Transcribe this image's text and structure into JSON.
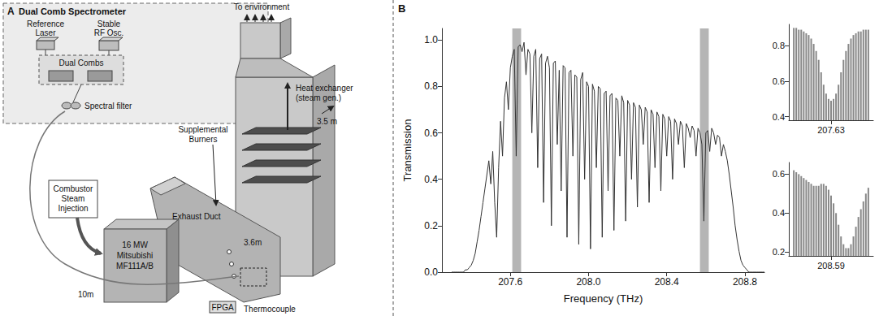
{
  "diagram": {
    "panel": "A",
    "title": "Dual Comb Spectrometer",
    "components": {
      "reference_laser": [
        "Reference",
        "Laser"
      ],
      "rf_oscillator": [
        "Stable",
        "RF Osc."
      ],
      "dual_combs": [
        "Dual Combs"
      ],
      "spectral_filter": [
        "Spectral filter"
      ],
      "exhaust": [
        "To environment"
      ],
      "heat_exchanger": [
        "Heat exchanger",
        "(steam gen.)"
      ],
      "stack_width": [
        "3.5 m"
      ],
      "burners": [
        "Supplemental",
        "Burners"
      ],
      "steam_injection": [
        "Combustor",
        "Steam",
        "Injection"
      ],
      "duct": [
        "Exhaust Duct"
      ],
      "duct_width": [
        "3.6m"
      ],
      "turbine": [
        "16 MW",
        "Mitsubishi",
        "MF111A/B"
      ],
      "fiber_length": [
        "10m"
      ],
      "fpga": [
        "FPGA"
      ],
      "thermocouple": [
        "Thermocouple"
      ]
    }
  },
  "chart_data": [
    {
      "type": "line",
      "panel": "B",
      "x_label": "Frequency (THz)",
      "y_label": "Transmission",
      "color": "#333333",
      "grid": false,
      "xlim": [
        207.25,
        208.9
      ],
      "xticks": [
        207.6,
        {
          "value": 208,
          "label": "208.0"
        },
        208.4,
        208.8
      ],
      "ylim": [
        0,
        1.05
      ],
      "yticks": [
        {
          "value": 0,
          "label": "0.0"
        },
        0.2,
        0.4,
        0.6,
        0.8,
        {
          "value": 1,
          "label": "1.0"
        }
      ],
      "highlight_bands": [
        [
          207.61,
          207.655
        ],
        [
          208.57,
          208.615
        ]
      ],
      "x": [
        207.3,
        207.31,
        207.32,
        207.33,
        207.34,
        207.35,
        207.36,
        207.37,
        207.38,
        207.39,
        207.4,
        207.41,
        207.42,
        207.43,
        207.44,
        207.45,
        207.46,
        207.47,
        207.48,
        207.49,
        207.5,
        207.51,
        207.52,
        207.53,
        207.54,
        207.55,
        207.56,
        207.57,
        207.58,
        207.59,
        207.6,
        207.61,
        207.62,
        207.63,
        207.64,
        207.65,
        207.66,
        207.67,
        207.68,
        207.69,
        207.7,
        207.71,
        207.72,
        207.73,
        207.74,
        207.75,
        207.76,
        207.77,
        207.78,
        207.79,
        207.8,
        207.81,
        207.82,
        207.83,
        207.84,
        207.85,
        207.86,
        207.87,
        207.88,
        207.89,
        207.9,
        207.91,
        207.92,
        207.93,
        207.94,
        207.95,
        207.96,
        207.97,
        207.98,
        207.99,
        208.0,
        208.01,
        208.02,
        208.03,
        208.04,
        208.05,
        208.06,
        208.07,
        208.08,
        208.09,
        208.1,
        208.11,
        208.12,
        208.13,
        208.14,
        208.15,
        208.16,
        208.17,
        208.18,
        208.19,
        208.2,
        208.21,
        208.22,
        208.23,
        208.24,
        208.25,
        208.26,
        208.27,
        208.28,
        208.29,
        208.3,
        208.31,
        208.32,
        208.33,
        208.34,
        208.35,
        208.36,
        208.37,
        208.38,
        208.39,
        208.4,
        208.41,
        208.42,
        208.43,
        208.44,
        208.45,
        208.46,
        208.47,
        208.48,
        208.49,
        208.5,
        208.51,
        208.52,
        208.53,
        208.54,
        208.55,
        208.56,
        208.57,
        208.58,
        208.59,
        208.6,
        208.61,
        208.62,
        208.63,
        208.64,
        208.65,
        208.66,
        208.67,
        208.68,
        208.69,
        208.7,
        208.71,
        208.72,
        208.73,
        208.74,
        208.75,
        208.76,
        208.77,
        208.78,
        208.79,
        208.8,
        208.81,
        208.82,
        208.83,
        208.84,
        208.85,
        208.86,
        208.87,
        208.88,
        208.89,
        208.9
      ],
      "values": [
        0,
        0,
        0,
        0,
        0,
        0,
        0,
        0.01,
        0.01,
        0.02,
        0.03,
        0.05,
        0.08,
        0.13,
        0.18,
        0.24,
        0.3,
        0.36,
        0.42,
        0.48,
        0.38,
        0.52,
        0.3,
        0.15,
        0.45,
        0.65,
        0.5,
        0.75,
        0.82,
        0.7,
        0.88,
        0.93,
        0.96,
        0.5,
        0.97,
        0.98,
        0.95,
        0.99,
        0.85,
        0.96,
        0.94,
        0.6,
        0.93,
        0.96,
        0.45,
        0.92,
        0.94,
        0.3,
        0.9,
        0.93,
        0.88,
        0.2,
        0.9,
        0.91,
        0.55,
        0.87,
        0.35,
        0.89,
        0.88,
        0.15,
        0.86,
        0.87,
        0.5,
        0.85,
        0.84,
        0.12,
        0.83,
        0.86,
        0.4,
        0.82,
        0.8,
        0.1,
        0.81,
        0.78,
        0.45,
        0.8,
        0.79,
        0.15,
        0.77,
        0.78,
        0.35,
        0.76,
        0.77,
        0.18,
        0.75,
        0.74,
        0.5,
        0.76,
        0.73,
        0.22,
        0.74,
        0.72,
        0.4,
        0.73,
        0.71,
        0.28,
        0.72,
        0.7,
        0.55,
        0.71,
        0.69,
        0.3,
        0.7,
        0.68,
        0.45,
        0.69,
        0.67,
        0.35,
        0.68,
        0.66,
        0.5,
        0.67,
        0.65,
        0.4,
        0.66,
        0.64,
        0.55,
        0.65,
        0.63,
        0.45,
        0.64,
        0.62,
        0.58,
        0.63,
        0.61,
        0.5,
        0.62,
        0.6,
        0.55,
        0.22,
        0.6,
        0.61,
        0.52,
        0.62,
        0.6,
        0.55,
        0.59,
        0.58,
        0.5,
        0.55,
        0.52,
        0.48,
        0.42,
        0.35,
        0.28,
        0.2,
        0.14,
        0.09,
        0.05,
        0.03,
        0.02,
        0.01,
        0,
        0,
        0,
        0,
        0,
        0,
        0,
        0,
        0
      ]
    },
    {
      "type": "bar",
      "color": "#888888",
      "grid": false,
      "xlim": [
        207.613,
        207.647
      ],
      "xticks": [
        207.63
      ],
      "ylim": [
        0.38,
        0.92
      ],
      "yticks": [
        0.4,
        0.6,
        0.8
      ],
      "x": [
        207.615,
        207.616,
        207.617,
        207.618,
        207.619,
        207.62,
        207.621,
        207.622,
        207.623,
        207.624,
        207.625,
        207.626,
        207.627,
        207.628,
        207.629,
        207.63,
        207.631,
        207.632,
        207.633,
        207.634,
        207.635,
        207.636,
        207.637,
        207.638,
        207.639,
        207.64,
        207.641,
        207.642,
        207.643,
        207.644,
        207.645
      ],
      "values": [
        0.9,
        0.9,
        0.89,
        0.89,
        0.88,
        0.87,
        0.86,
        0.84,
        0.81,
        0.77,
        0.72,
        0.65,
        0.58,
        0.53,
        0.5,
        0.49,
        0.5,
        0.53,
        0.58,
        0.65,
        0.72,
        0.77,
        0.81,
        0.84,
        0.86,
        0.87,
        0.88,
        0.88,
        0.89,
        0.89,
        0.89
      ]
    },
    {
      "type": "bar",
      "color": "#888888",
      "grid": false,
      "xlim": [
        208.573,
        208.607
      ],
      "xticks": [
        208.59
      ],
      "ylim": [
        0.18,
        0.66
      ],
      "yticks": [
        0.2,
        0.4,
        0.6
      ],
      "x": [
        208.575,
        208.576,
        208.577,
        208.578,
        208.579,
        208.58,
        208.581,
        208.582,
        208.583,
        208.584,
        208.585,
        208.586,
        208.587,
        208.588,
        208.589,
        208.59,
        208.591,
        208.592,
        208.593,
        208.594,
        208.595,
        208.596,
        208.597,
        208.598,
        208.599,
        208.6,
        208.601,
        208.602,
        208.603,
        208.604,
        208.605
      ],
      "values": [
        0.62,
        0.61,
        0.6,
        0.59,
        0.58,
        0.57,
        0.56,
        0.55,
        0.54,
        0.54,
        0.54,
        0.55,
        0.55,
        0.54,
        0.52,
        0.49,
        0.45,
        0.4,
        0.34,
        0.28,
        0.24,
        0.22,
        0.22,
        0.24,
        0.28,
        0.33,
        0.38,
        0.42,
        0.46,
        0.5,
        0.53
      ]
    }
  ]
}
